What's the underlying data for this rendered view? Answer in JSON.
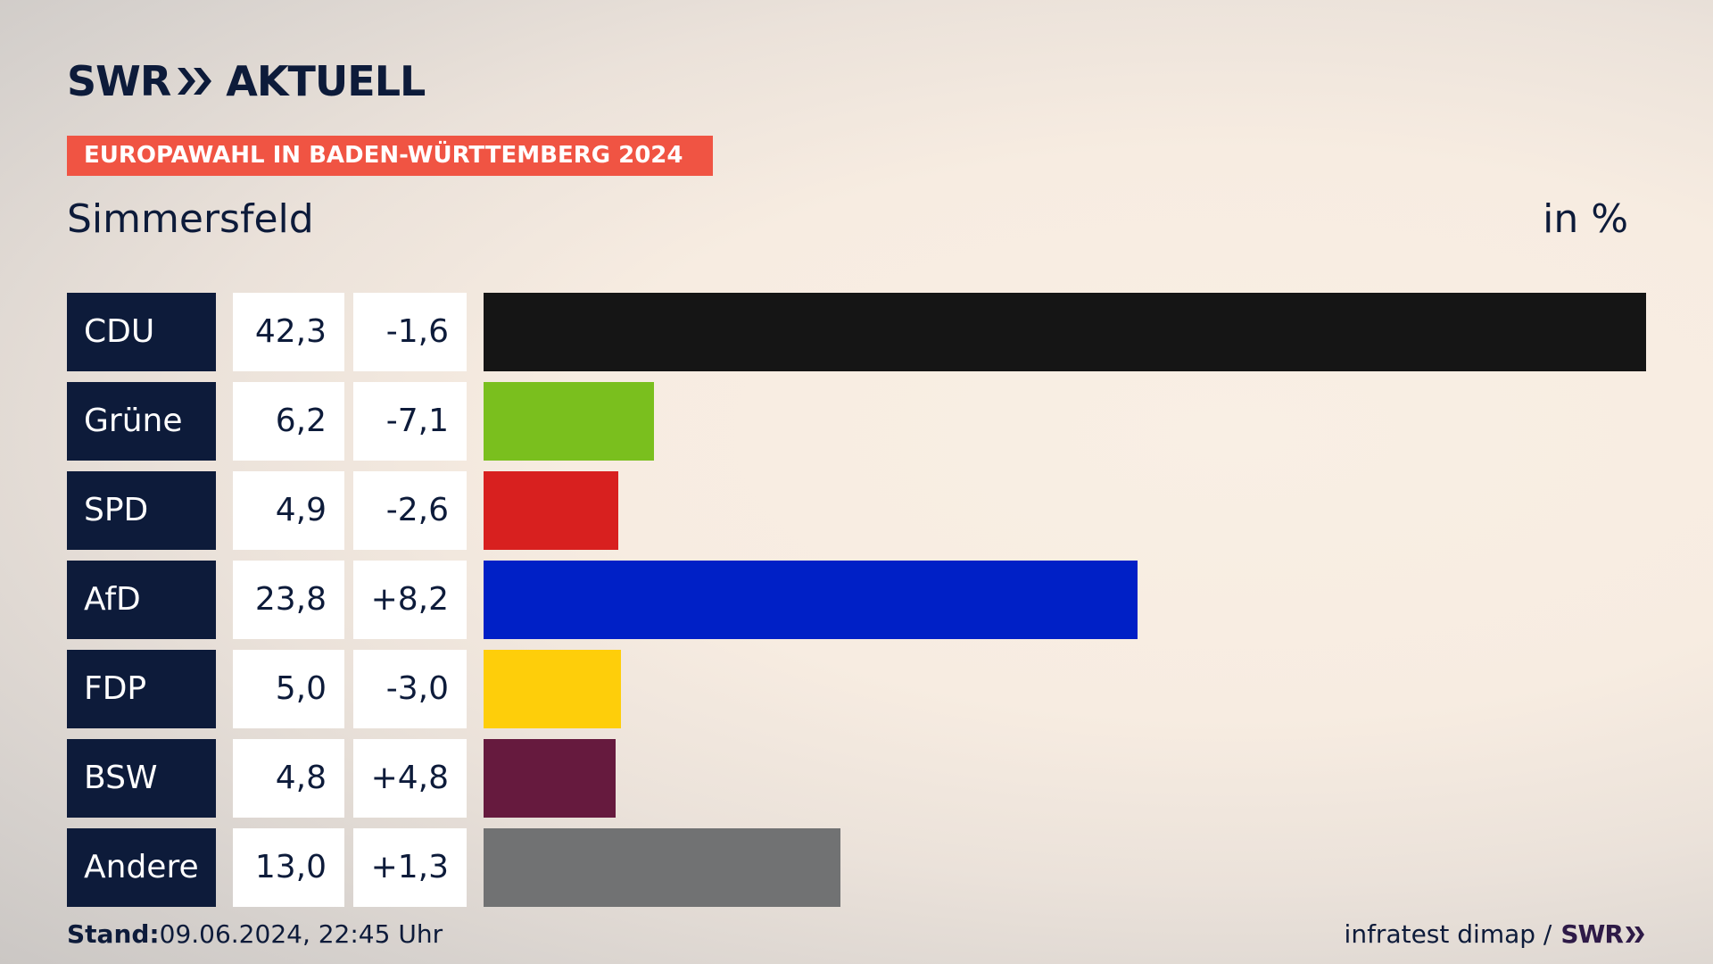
{
  "logo": {
    "brand": "SWR",
    "product": "AKTUELL",
    "icon": "double-chevron-icon"
  },
  "banner": "EUROPAWAHL IN BADEN-WÜRTTEMBERG 2024",
  "subtitle": "Simmersfeld",
  "unit": "in %",
  "footer": {
    "stand_label": "Stand:",
    "stand_value": "09.06.2024, 22:45 Uhr",
    "source": "infratest dimap /",
    "source_brand": "SWR"
  },
  "chart_data": {
    "type": "bar",
    "orientation": "horizontal",
    "categories": [
      "CDU",
      "Grüne",
      "SPD",
      "AfD",
      "FDP",
      "BSW",
      "Andere"
    ],
    "values": [
      42.3,
      6.2,
      4.9,
      23.8,
      5.0,
      4.8,
      13.0
    ],
    "value_labels": [
      "42,3",
      "6,2",
      "4,9",
      "23,8",
      "5,0",
      "4,8",
      "13,0"
    ],
    "diff_labels": [
      "-1,6",
      "-7,1",
      "-2,6",
      "+8,2",
      "-3,0",
      "+4,8",
      "+1,3"
    ],
    "colors": [
      "#151515",
      "#7abf1e",
      "#d8201f",
      "#0020c6",
      "#fece0a",
      "#661a3e",
      "#717273"
    ],
    "xlim": [
      0,
      42.3
    ],
    "unit": "in %"
  }
}
